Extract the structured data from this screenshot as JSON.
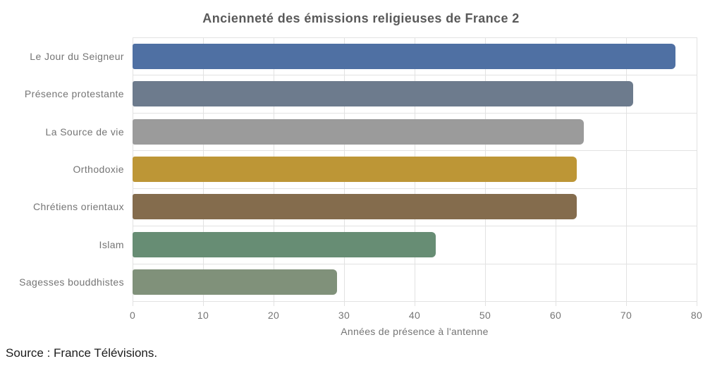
{
  "title": "Ancienneté des émissions religieuses de France 2",
  "source": "Source : France Télévisions.",
  "chart_data": {
    "type": "bar",
    "orientation": "horizontal",
    "title": "Ancienneté des émissions religieuses de France 2",
    "categories": [
      "Le Jour du Seigneur",
      "Présence protestante",
      "La Source de vie",
      "Orthodoxie",
      "Chrétiens orientaux",
      "Islam",
      "Sagesses bouddhistes"
    ],
    "values": [
      77,
      71,
      64,
      63,
      63,
      43,
      29
    ],
    "bar_colors": [
      "#4f70a3",
      "#6d7b8d",
      "#9b9b9b",
      "#bd9636",
      "#846c4d",
      "#678d74",
      "#80917a"
    ],
    "xlabel": "Années de présence à l'antenne",
    "ylabel": "",
    "xlim": [
      0,
      80
    ],
    "xticks": [
      0,
      10,
      20,
      30,
      40,
      50,
      60,
      70,
      80
    ],
    "grid": true,
    "legend": false
  },
  "colors": {
    "background": "#ffffff",
    "grid": "#e2e2e2",
    "axis_text": "#757575",
    "title_text": "#595959",
    "source_text": "#1c1c1c"
  }
}
